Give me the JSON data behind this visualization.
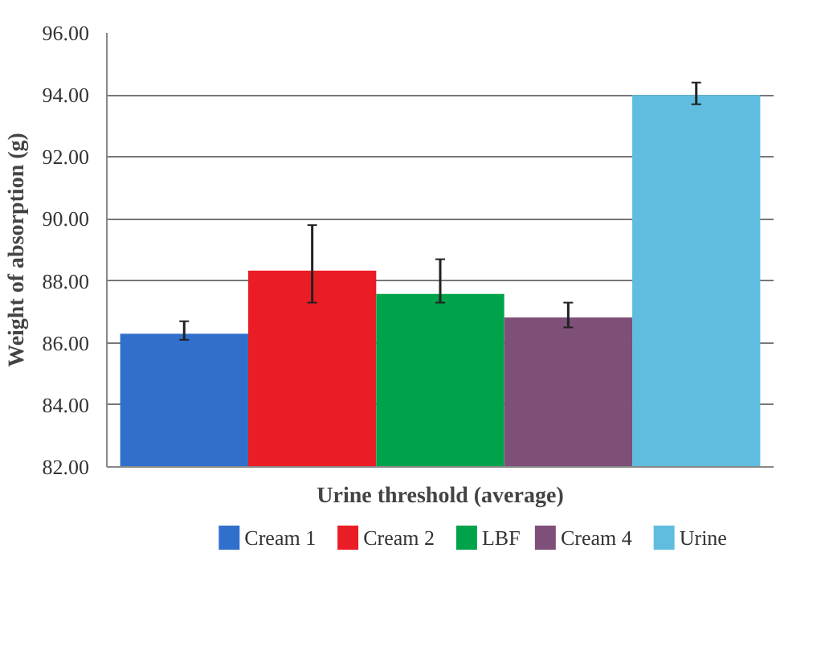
{
  "chart_data": {
    "type": "bar",
    "xlabel": "Urine threshold (average)",
    "ylabel": "Weight of absorption (g)",
    "categories": [
      null
    ],
    "series": [
      {
        "name": "Cream 1",
        "color": "#3070cc",
        "values": [
          86.3
        ],
        "errors": [
          [
            86.1,
            86.7
          ]
        ]
      },
      {
        "name": "Cream 2",
        "color": "#ea1c26",
        "values": [
          88.33
        ],
        "errors": [
          [
            87.3,
            89.8
          ]
        ]
      },
      {
        "name": "LBF",
        "color": "#00a24a",
        "values": [
          87.58
        ],
        "errors": [
          [
            87.3,
            88.7
          ]
        ]
      },
      {
        "name": "Cream 4",
        "color": "#7e5079",
        "values": [
          86.82
        ],
        "errors": [
          [
            86.5,
            87.3
          ]
        ]
      },
      {
        "name": "Urine",
        "color": "#60bde0",
        "values": [
          94.0
        ],
        "errors": [
          [
            93.7,
            94.4
          ]
        ]
      }
    ],
    "ylim": [
      82,
      96
    ],
    "yticks": [
      {
        "value": 82,
        "label": "82.00"
      },
      {
        "value": 84,
        "label": "84.00"
      },
      {
        "value": 86,
        "label": "86.00"
      },
      {
        "value": 88,
        "label": "88.00"
      },
      {
        "value": 90,
        "label": "90.00"
      },
      {
        "value": 92,
        "label": "92.00"
      },
      {
        "value": 94,
        "label": "94.00"
      },
      {
        "value": 96,
        "label": "96.00"
      }
    ],
    "grid": "y",
    "legend": "bottom"
  }
}
